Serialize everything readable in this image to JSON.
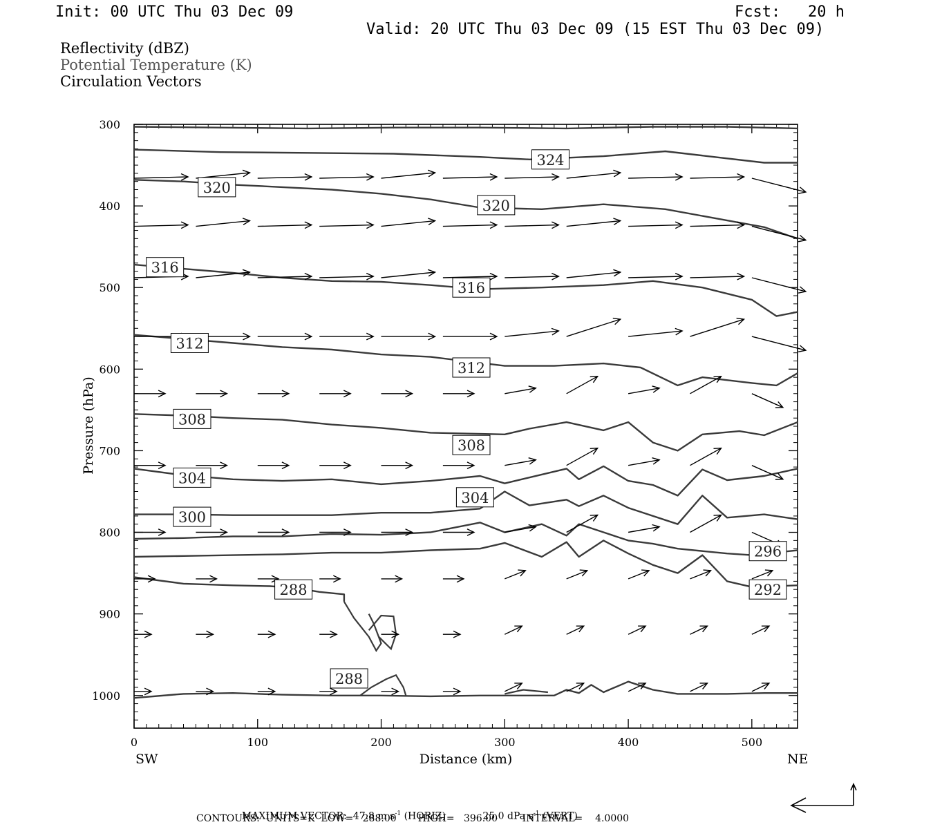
{
  "header": {
    "init": "Init: 00 UTC Thu 03 Dec 09",
    "fcst": "Fcst:   20 h",
    "valid": "Valid: 20 UTC Thu 03 Dec 09 (15 EST Thu 03 Dec 09)"
  },
  "legend": {
    "line1": "Reflectivity (dBZ)",
    "line2": "Potential Temperature (K)",
    "line3": "Circulation Vectors"
  },
  "colors": {
    "ink": "#000000",
    "contour": "#3a3a3a",
    "legend_gray": "#555555"
  },
  "footer": {
    "max_vector_label": "MAXIMUM VECTOR:",
    "max_vector_horiz": "47.8 m s",
    "horiz_tag": "(HORIZ)",
    "max_vector_vert": "25.0 dPa s",
    "vert_tag": "(VERT)",
    "superscript": "-1",
    "contours": "CONTOURS:  UNITS=K  LOW=   288.00       HIGH=   396.00        INTERVAL=    4.0000"
  },
  "chart_data": {
    "type": "cross-section",
    "xlabel": "Distance (km)",
    "ylabel": "Pressure (hPa)",
    "x_endpoint_labels": {
      "left": "SW",
      "right": "NE"
    },
    "xlim": [
      0,
      537
    ],
    "ylim": [
      1040,
      300
    ],
    "x_ticks": [
      0,
      100,
      200,
      300,
      400,
      500
    ],
    "y_ticks": [
      300,
      400,
      500,
      600,
      700,
      800,
      900,
      1000
    ],
    "grid": false,
    "contour_interval_K": 4.0,
    "contour_labels": [
      {
        "text": "324",
        "x": 337,
        "p": 343
      },
      {
        "text": "320",
        "x": 67,
        "p": 377
      },
      {
        "text": "320",
        "x": 293,
        "p": 399
      },
      {
        "text": "316",
        "x": 25,
        "p": 475
      },
      {
        "text": "316",
        "x": 273,
        "p": 500
      },
      {
        "text": "312",
        "x": 45,
        "p": 568
      },
      {
        "text": "312",
        "x": 273,
        "p": 598
      },
      {
        "text": "308",
        "x": 47,
        "p": 661
      },
      {
        "text": "308",
        "x": 273,
        "p": 693
      },
      {
        "text": "304",
        "x": 47,
        "p": 733
      },
      {
        "text": "304",
        "x": 276,
        "p": 757
      },
      {
        "text": "300",
        "x": 47,
        "p": 781
      },
      {
        "text": "296",
        "x": 513,
        "p": 823
      },
      {
        "text": "292",
        "x": 513,
        "p": 870
      },
      {
        "text": "288",
        "x": 129,
        "p": 870
      },
      {
        "text": "288",
        "x": 174,
        "p": 979
      }
    ],
    "isentropes": [
      {
        "p": [
          303,
          304,
          305,
          304,
          304,
          305,
          303,
          303,
          305
        ],
        "x": [
          0,
          70,
          140,
          210,
          280,
          350,
          420,
          480,
          537
        ]
      },
      {
        "p": [
          331,
          334,
          335,
          336,
          340,
          343,
          339,
          333,
          347,
          347
        ],
        "x": [
          0,
          70,
          140,
          210,
          280,
          320,
          380,
          430,
          510,
          537
        ]
      },
      {
        "p": [
          368,
          370,
          374,
          377,
          380,
          385,
          392,
          402,
          404,
          398,
          404,
          415,
          426,
          440
        ],
        "x": [
          0,
          40,
          80,
          120,
          160,
          200,
          240,
          280,
          330,
          380,
          430,
          470,
          510,
          537
        ]
      },
      {
        "p": [
          472,
          477,
          482,
          488,
          492,
          493,
          497,
          502,
          500,
          497,
          492,
          500,
          515,
          535,
          530
        ],
        "x": [
          0,
          40,
          80,
          120,
          160,
          200,
          240,
          280,
          330,
          380,
          420,
          460,
          500,
          520,
          537
        ]
      },
      {
        "p": [
          558,
          563,
          568,
          573,
          576,
          582,
          585,
          596,
          596,
          593,
          598,
          620,
          610,
          617,
          620,
          605
        ],
        "x": [
          0,
          40,
          80,
          120,
          160,
          200,
          240,
          300,
          340,
          380,
          410,
          440,
          460,
          500,
          520,
          537
        ]
      },
      {
        "p": [
          655,
          657,
          660,
          662,
          668,
          672,
          678,
          680,
          673,
          665,
          675,
          665,
          690,
          700,
          680,
          676,
          681,
          665
        ],
        "x": [
          0,
          40,
          80,
          120,
          160,
          200,
          240,
          300,
          320,
          350,
          380,
          400,
          420,
          440,
          460,
          490,
          510,
          537
        ]
      },
      {
        "p": [
          722,
          730,
          735,
          737,
          735,
          741,
          737,
          731,
          740,
          722,
          735,
          719,
          737,
          742,
          755,
          723,
          736,
          731,
          722
        ],
        "x": [
          0,
          40,
          80,
          120,
          160,
          200,
          240,
          280,
          300,
          350,
          360,
          380,
          400,
          420,
          440,
          460,
          480,
          510,
          537
        ]
      },
      {
        "p": [
          778,
          778,
          779,
          779,
          779,
          776,
          776,
          771,
          750,
          767,
          760,
          768,
          755,
          770,
          790,
          755,
          782,
          778,
          784
        ],
        "x": [
          0,
          40,
          80,
          120,
          160,
          200,
          240,
          280,
          300,
          320,
          350,
          360,
          380,
          400,
          440,
          460,
          480,
          510,
          537
        ]
      },
      {
        "p": [
          808,
          807,
          805,
          805,
          802,
          803,
          800,
          788,
          800,
          790,
          804,
          790,
          800,
          810,
          814,
          820,
          826,
          828,
          822
        ],
        "x": [
          0,
          40,
          80,
          120,
          160,
          200,
          240,
          280,
          300,
          330,
          350,
          360,
          380,
          400,
          420,
          440,
          480,
          500,
          537
        ]
      },
      {
        "p": [
          830,
          829,
          828,
          827,
          825,
          825,
          822,
          820,
          813,
          830,
          812,
          830,
          810,
          826,
          840,
          850,
          828,
          860,
          867,
          865
        ],
        "x": [
          0,
          40,
          80,
          120,
          160,
          200,
          240,
          280,
          300,
          330,
          350,
          360,
          380,
          400,
          420,
          440,
          460,
          480,
          500,
          537
        ]
      },
      {
        "p": [
          855,
          863,
          865,
          866,
          868,
          873,
          876,
          880,
          885
        ],
        "x": [
          0,
          40,
          80,
          110,
          130,
          150,
          170,
          170,
          170
        ]
      },
      {
        "p": [
          1003,
          998,
          997,
          999,
          1000,
          1000,
          1001,
          1000,
          1000,
          1000,
          1000,
          993,
          997,
          987,
          996,
          983,
          993,
          998,
          998,
          997,
          997
        ],
        "x": [
          0,
          40,
          80,
          120,
          160,
          200,
          240,
          280,
          300,
          320,
          340,
          350,
          360,
          370,
          380,
          400,
          420,
          440,
          480,
          510,
          537
        ]
      }
    ],
    "vector_rows_hpa": [
      366,
      425,
      488,
      560,
      630,
      718,
      800,
      857,
      925,
      995
    ],
    "vector_columns_km": [
      0,
      50,
      100,
      150,
      200,
      250,
      300,
      350,
      400,
      450,
      500
    ]
  }
}
